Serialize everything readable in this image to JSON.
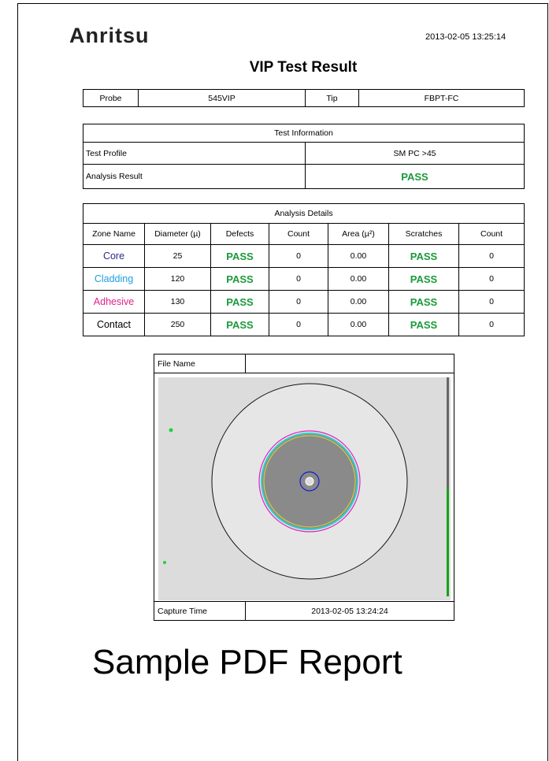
{
  "header": {
    "logo": "Anritsu",
    "timestamp": "2013-02-05 13:25:14",
    "title": "VIP Test Result"
  },
  "probe_table": {
    "rows": [
      [
        "Probe",
        "545VIP",
        "Tip",
        "FBPT-FC"
      ]
    ]
  },
  "test_info": {
    "title": "Test Information",
    "rows": [
      [
        "Test Profile",
        "SM PC >45"
      ],
      [
        "Analysis Result",
        "PASS"
      ]
    ]
  },
  "analysis": {
    "title": "Analysis Details",
    "columns": [
      "Zone Name",
      "Diameter (µ)",
      "Defects",
      "Count",
      "Area (µ²)",
      "Scratches",
      "Count"
    ],
    "rows": [
      [
        "Core",
        "25",
        "PASS",
        "0",
        "0.00",
        "PASS",
        "0"
      ],
      [
        "Cladding",
        "120",
        "PASS",
        "0",
        "0.00",
        "PASS",
        "0"
      ],
      [
        "Adhesive",
        "130",
        "PASS",
        "0",
        "0.00",
        "PASS",
        "0"
      ],
      [
        "Contact",
        "250",
        "PASS",
        "0",
        "0.00",
        "PASS",
        "0"
      ]
    ]
  },
  "image_panel": {
    "file_name_label": "File Name",
    "capture_time_label": "Capture Time",
    "capture_time": "2013-02-05 13:24:24"
  },
  "caption": "Sample PDF Report"
}
